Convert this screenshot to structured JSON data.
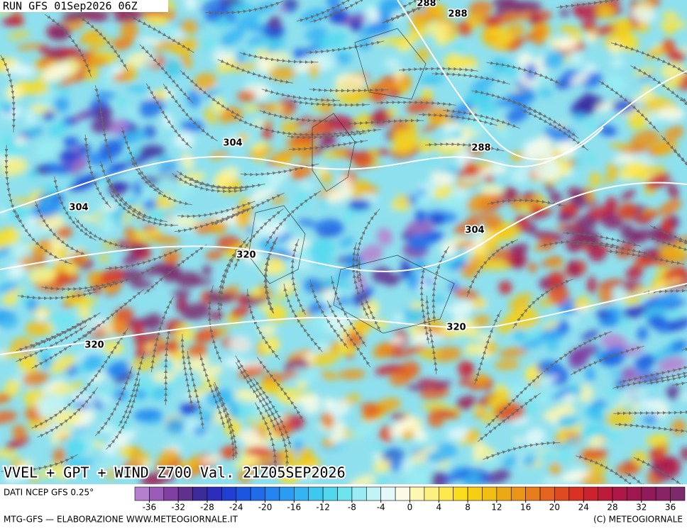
{
  "header": {
    "run": "RUN GFS 01Sep2026 06Z"
  },
  "map": {
    "contour_labels": [
      "288",
      "288",
      "288",
      "304",
      "304",
      "304",
      "320",
      "320",
      "320"
    ]
  },
  "title": "VVEL + GPT + WIND Z700 Val. 21Z05SEP2026",
  "legend": {
    "source": "DATI NCEP GFS 0.25°",
    "range": [
      -38,
      38
    ],
    "step": 2,
    "ticks": [
      -36,
      -32,
      -28,
      -24,
      -20,
      -16,
      -12,
      -8,
      -4,
      0,
      4,
      8,
      12,
      16,
      20,
      24,
      28,
      32,
      36
    ],
    "colors": [
      "#b77fcf",
      "#9a5cb8",
      "#7f3fa3",
      "#60308f",
      "#3a2a9a",
      "#2c2dbb",
      "#1f3fd0",
      "#1b55e0",
      "#1f6be8",
      "#2484ef",
      "#2c9cf2",
      "#35b3f2",
      "#3ec7ef",
      "#4fd8ee",
      "#6ee4ef",
      "#98ecf2",
      "#c2f3f6",
      "#e3f9f9",
      "#fbfbe8",
      "#fdf6b0",
      "#fdf080",
      "#fde84f",
      "#fbdd1e",
      "#f6cf14",
      "#f2bd12",
      "#eda915",
      "#ea9418",
      "#e77d1c",
      "#e4641f",
      "#df4a22",
      "#d83225",
      "#cc2230",
      "#bd1a3c",
      "#ad1848",
      "#9e1750",
      "#921a5a",
      "#8a2266",
      "#7d2a6c"
    ]
  },
  "footer": {
    "left": "MTG-GFS — ELABORAZIONE WWW.METEOGIORNALE.IT",
    "right": "(C) METEOGIORNALE"
  }
}
